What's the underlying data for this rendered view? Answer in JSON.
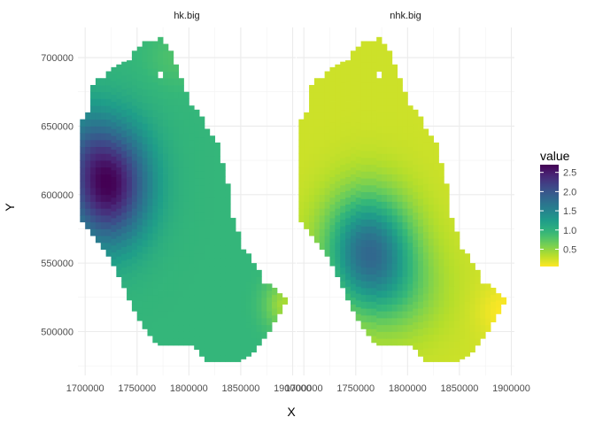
{
  "chart_data": {
    "type": "heatmap",
    "title": "",
    "xlabel": "X",
    "ylabel": "Y",
    "xlim": [
      1693000,
      1903000
    ],
    "ylim": [
      468000,
      722000
    ],
    "x_ticks": [
      1700000,
      1750000,
      1800000,
      1850000,
      1900000
    ],
    "y_ticks": [
      500000,
      550000,
      600000,
      650000,
      700000
    ],
    "x_tick_labels": [
      "1700000",
      "1750000",
      "1800000",
      "1850000",
      "1900000"
    ],
    "y_tick_labels": [
      "500000",
      "550000",
      "600000",
      "650000",
      "700000"
    ],
    "cell_size": 5000,
    "grid": true,
    "panels": [
      {
        "name": "hk.big"
      },
      {
        "name": "nhk.big"
      }
    ],
    "legend": {
      "title": "value",
      "position": "right",
      "range": [
        0.05,
        2.7
      ],
      "breaks": [
        0.5,
        1.0,
        1.5,
        2.0,
        2.5
      ],
      "labels": [
        "0.5",
        "1.0",
        "1.5",
        "2.0",
        "2.5"
      ],
      "colormap": "viridis (reversed: low = yellow, high = purple)"
    },
    "region_outline": {
      "description": "Columns of the gridded region as [x-center, y-bottom, y-top] in data units",
      "columns": [
        [
          1697500,
          580000,
          655000
        ],
        [
          1702500,
          575000,
          660000
        ],
        [
          1707500,
          570000,
          680000
        ],
        [
          1712500,
          565000,
          685000
        ],
        [
          1717500,
          560000,
          687000
        ],
        [
          1722500,
          555000,
          688000
        ],
        [
          1727500,
          548000,
          692000
        ],
        [
          1732500,
          540000,
          695000
        ],
        [
          1737500,
          532000,
          697000
        ],
        [
          1742500,
          523000,
          700000
        ],
        [
          1747500,
          515000,
          705000
        ],
        [
          1752500,
          508000,
          710000
        ],
        [
          1757500,
          502000,
          712000
        ],
        [
          1762500,
          497000,
          712000
        ],
        [
          1767500,
          492000,
          712000
        ],
        [
          1772500,
          490000,
          715000
        ],
        [
          1777500,
          490000,
          712000
        ],
        [
          1782500,
          490000,
          705000
        ],
        [
          1787500,
          490000,
          697000
        ],
        [
          1792500,
          490000,
          685000
        ],
        [
          1797500,
          490000,
          675000
        ],
        [
          1802500,
          490000,
          665000
        ],
        [
          1807500,
          487000,
          660000
        ],
        [
          1812500,
          482000,
          655000
        ],
        [
          1817500,
          478000,
          650000
        ],
        [
          1822500,
          478000,
          645000
        ],
        [
          1827500,
          478000,
          640000
        ],
        [
          1832500,
          478000,
          625000
        ],
        [
          1837500,
          478000,
          610000
        ],
        [
          1842500,
          478000,
          585000
        ],
        [
          1847500,
          478000,
          572000
        ],
        [
          1852500,
          480000,
          562000
        ],
        [
          1857500,
          482000,
          556000
        ],
        [
          1862500,
          485000,
          550000
        ],
        [
          1867500,
          490000,
          543000
        ],
        [
          1872500,
          495000,
          537000
        ],
        [
          1877500,
          500000,
          533000
        ],
        [
          1882500,
          507000,
          530000
        ],
        [
          1887500,
          513000,
          530000
        ],
        [
          1892500,
          520000,
          527000
        ]
      ]
    },
    "holes": [
      [
        1772500,
        687500
      ],
      [
        1767500,
        667500
      ]
    ]
  }
}
